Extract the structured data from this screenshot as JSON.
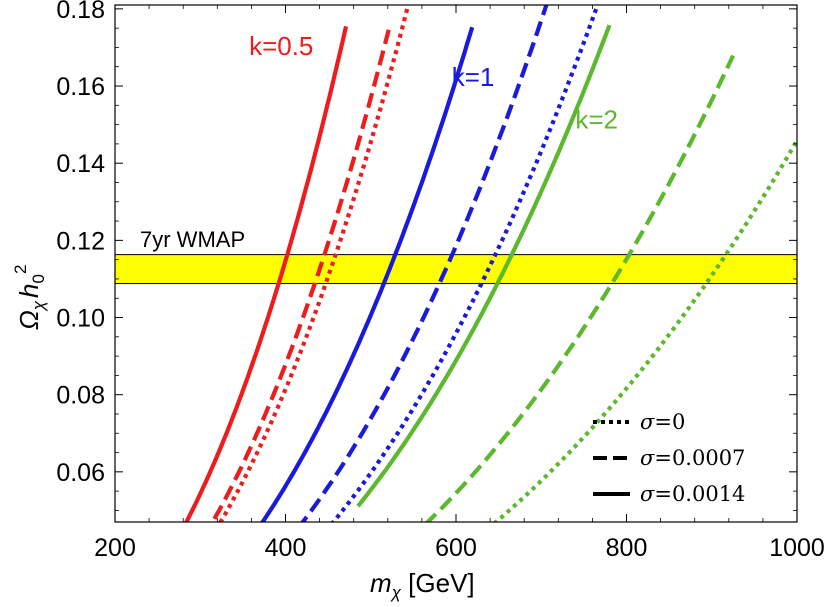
{
  "chart_data": {
    "type": "line",
    "title": "",
    "xlabel": "m_χ [GeV]",
    "xlabel_parts": {
      "sym": "m",
      "sub": "χ",
      "unit": " [GeV]"
    },
    "ylabel": "Ω_χ h_0^2",
    "ylabel_parts": {
      "sym": "Ω",
      "sub": "χ",
      "h": "h",
      "hsub": "0",
      "sup": "2"
    },
    "xlim": [
      200,
      1000
    ],
    "ylim": [
      0.047,
      0.181
    ],
    "xticks": [
      200,
      400,
      600,
      800,
      1000
    ],
    "xtick_labels": [
      "200",
      "400",
      "600",
      "800",
      "1000"
    ],
    "yticks": [
      0.06,
      0.08,
      0.1,
      0.12,
      0.14,
      0.16,
      0.18
    ],
    "ytick_labels": [
      "0.06",
      "0.08",
      "0.10",
      "0.12",
      "0.14",
      "0.16",
      "0.18"
    ],
    "band": {
      "label": "7yr WMAP",
      "ymin": 0.1088,
      "ymax": 0.1163,
      "color": "#ffff00"
    },
    "curve_exponent": 2.6,
    "colors": {
      "k05": "#ee1c1c",
      "k1": "#1a1adc",
      "k2": "#5cb82e"
    },
    "annotations": [
      {
        "text": "k=0.5",
        "color": "#ee1c1c",
        "x": 395,
        "y": 0.168
      },
      {
        "text": "k=1",
        "color": "#1a1adc",
        "x": 620,
        "y": 0.16
      },
      {
        "text": "k=2",
        "color": "#5cb82e",
        "x": 765,
        "y": 0.149
      }
    ],
    "series": [
      {
        "name": "k=0.5, σ=0.0014",
        "color": "#ee1c1c",
        "style": "solid",
        "x": [
          272,
          300,
          350,
          400,
          450,
          471
        ],
        "anchor": [
          397,
          0.1125
        ]
      },
      {
        "name": "k=0.5, σ=0.0007",
        "color": "#ee1c1c",
        "style": "dashed",
        "x": [
          290,
          350,
          400,
          450,
          500,
          521
        ],
        "anchor": [
          440,
          0.1125
        ]
      },
      {
        "name": "k=0.5, σ=0",
        "color": "#ee1c1c",
        "style": "dotted",
        "x": [
          297,
          350,
          400,
          450,
          500,
          552
        ],
        "anchor": [
          453,
          0.1125
        ]
      },
      {
        "name": "k=1, σ=0.0014",
        "color": "#1a1adc",
        "style": "solid",
        "x": [
          368,
          400,
          450,
          500,
          550,
          600,
          619
        ],
        "anchor": [
          522,
          0.1125
        ]
      },
      {
        "name": "k=1, σ=0.0007",
        "color": "#1a1adc",
        "style": "dashed",
        "x": [
          398,
          450,
          500,
          550,
          600,
          650,
          700,
          737
        ],
        "anchor": [
          588,
          0.1125
        ]
      },
      {
        "name": "k=1, σ=0",
        "color": "#1a1adc",
        "style": "dotted",
        "x": [
          407,
          450,
          500,
          550,
          600,
          650,
          700,
          750,
          774
        ],
        "anchor": [
          638,
          0.1125
        ]
      },
      {
        "name": "k=2, σ=0.0014",
        "color": "#5cb82e",
        "style": "solid",
        "x": [
          485,
          500,
          550,
          600,
          650,
          700,
          750,
          780
        ],
        "anchor": [
          657,
          0.1125
        ]
      },
      {
        "name": "k=2, σ=0.0007",
        "color": "#5cb82e",
        "style": "dashed",
        "x": [
          545,
          600,
          650,
          700,
          750,
          800,
          850,
          900,
          925
        ],
        "anchor": [
          793,
          0.1125
        ]
      },
      {
        "name": "k=2, σ=0",
        "color": "#5cb82e",
        "style": "dotted",
        "x": [
          590,
          650,
          700,
          750,
          800,
          850,
          900,
          950,
          1000
        ],
        "anchor": [
          905,
          0.1125
        ]
      }
    ],
    "legend": {
      "placement": "bottom-right",
      "entries": [
        {
          "style": "dotted",
          "sym": "σ",
          "text": "=0"
        },
        {
          "style": "dashed",
          "sym": "σ",
          "text": "=0.0007"
        },
        {
          "style": "solid",
          "sym": "σ",
          "text": "=0.0014"
        }
      ]
    }
  }
}
